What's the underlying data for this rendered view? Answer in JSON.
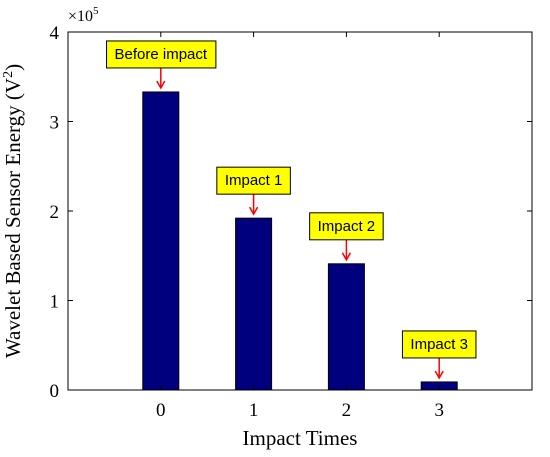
{
  "chart_data": {
    "type": "bar",
    "categories": [
      "0",
      "1",
      "2",
      "3"
    ],
    "values": [
      333000,
      192000,
      141000,
      9000
    ],
    "xlabel": "Impact Times",
    "ylabel_main": "Wavelet Based Sensor Energy (V",
    "ylabel_sup": "2",
    "ylabel_end": ")",
    "ylim": [
      0,
      400000
    ],
    "xlim": [
      -1,
      4
    ],
    "yticks": [
      0,
      1,
      2,
      3,
      4
    ],
    "ytick_labels": [
      "0",
      "1",
      "2",
      "3",
      "4"
    ],
    "y_multiplier_base": "×10",
    "y_multiplier_exp": "5",
    "annotations": [
      "Before impact",
      "Impact 1",
      "Impact 2",
      "Impact 3"
    ],
    "grid": false,
    "bar_color": "#00007f",
    "annotation_fill": "#ffff00",
    "arrow_color": "#ff0000"
  }
}
